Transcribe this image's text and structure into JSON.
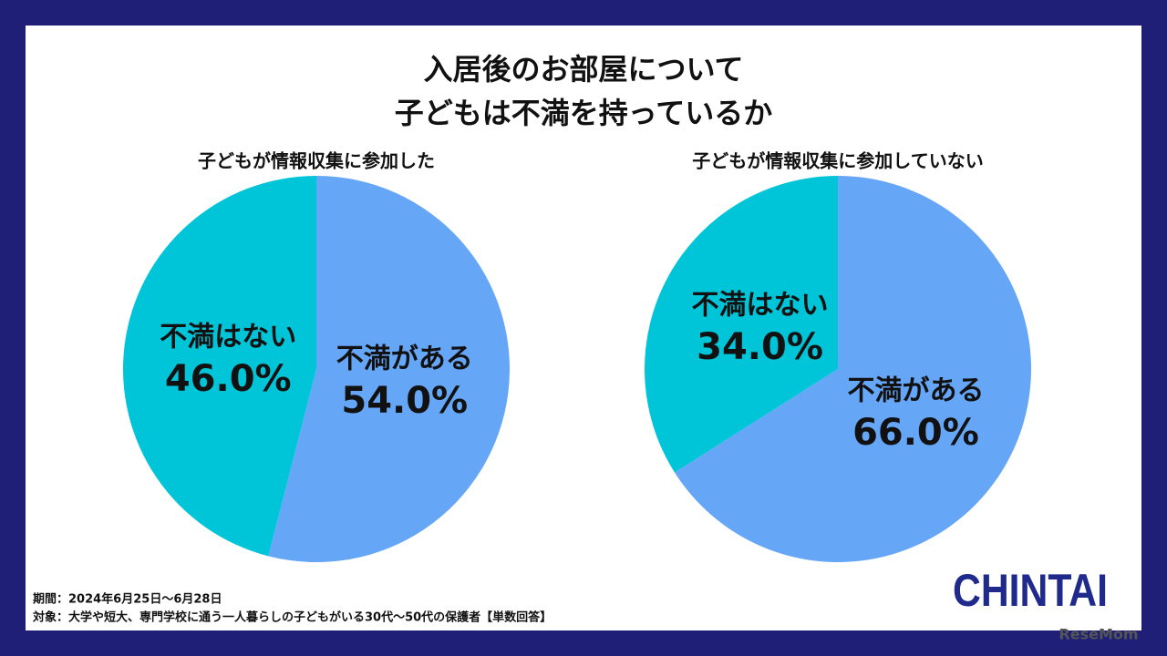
{
  "title_lines": [
    "入居後のお部屋について",
    "子どもは不満を持っているか"
  ],
  "chart_data": [
    {
      "type": "pie",
      "title": "子どもが情報収集に参加した",
      "categories": [
        "不満がある",
        "不満はない"
      ],
      "values": [
        54.0,
        46.0
      ],
      "value_labels": [
        "54.0%",
        "46.0%"
      ],
      "colors": [
        "#66a6f7",
        "#00c5d8"
      ]
    },
    {
      "type": "pie",
      "title": "子どもが情報収集に参加していない",
      "categories": [
        "不満がある",
        "不満はない"
      ],
      "values": [
        66.0,
        34.0
      ],
      "value_labels": [
        "66.0%",
        "34.0%"
      ],
      "colors": [
        "#66a6f7",
        "#00c5d8"
      ]
    }
  ],
  "footnotes": [
    "期間：2024年6月25日～6月28日",
    "対象：大学や短大、専門学校に通う一人暮らしの子どもがいる30代～50代の保護者【単数回答】"
  ],
  "logo": "CHINTAI",
  "watermark": "ReseMom"
}
